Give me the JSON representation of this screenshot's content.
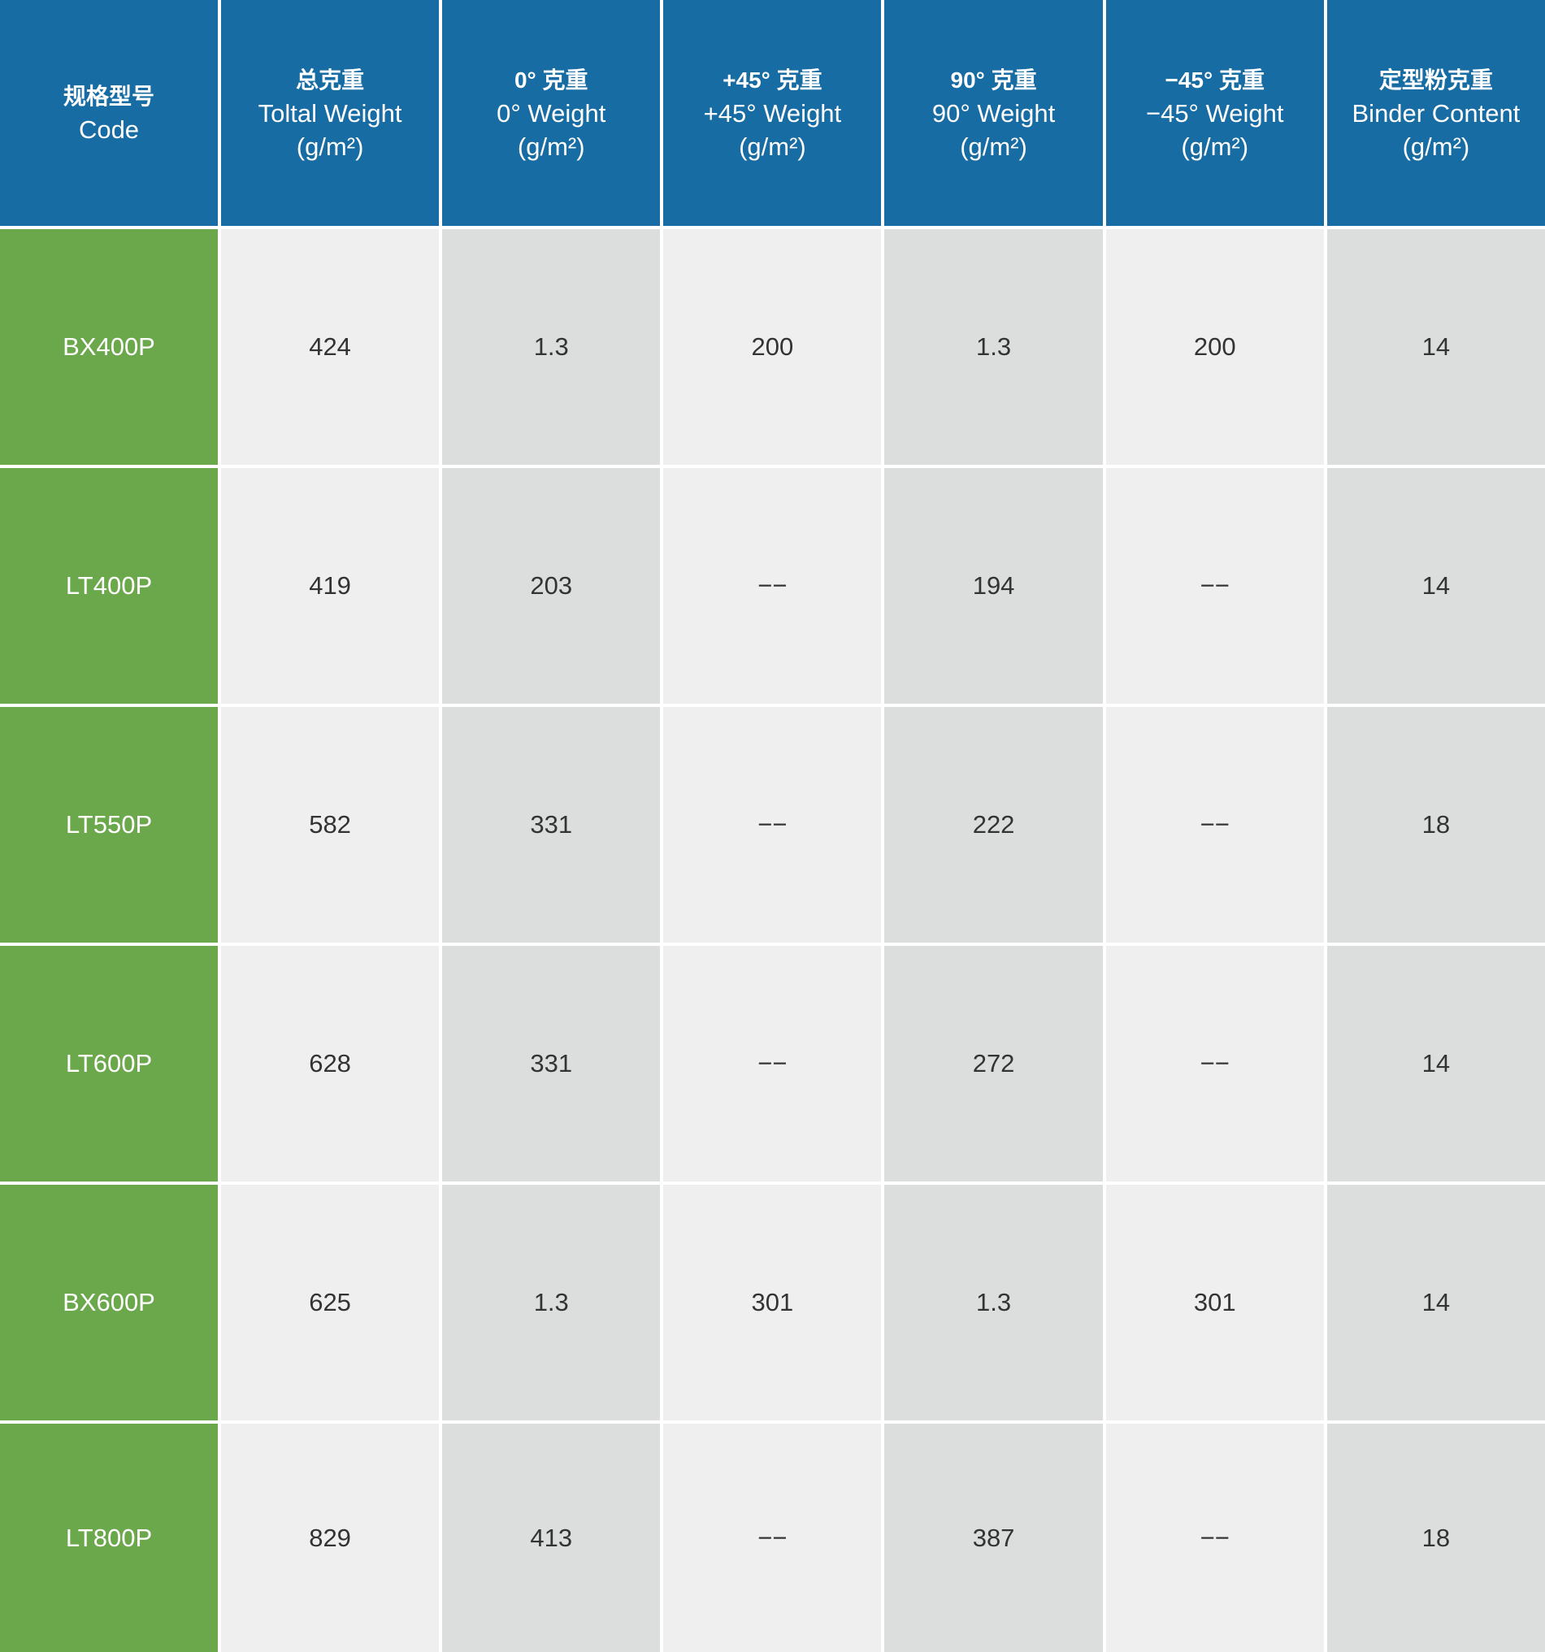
{
  "headers": [
    {
      "zh": "规格型号",
      "en": "Code",
      "unit": ""
    },
    {
      "zh": "总克重",
      "en": "Toltal Weight",
      "unit": "(g/m²)"
    },
    {
      "zh": "0° 克重",
      "en": "0°  Weight",
      "unit": "(g/m²)"
    },
    {
      "zh": "+45° 克重",
      "en": "+45° Weight",
      "unit": "(g/m²)"
    },
    {
      "zh": "90° 克重",
      "en": "90° Weight",
      "unit": "(g/m²)"
    },
    {
      "zh": "−45° 克重",
      "en": "−45°  Weight",
      "unit": "(g/m²)"
    },
    {
      "zh": "定型粉克重",
      "en": "Binder Content",
      "unit": "(g/m²)"
    }
  ],
  "rows": [
    [
      "BX400P",
      "424",
      "1.3",
      "200",
      "1.3",
      "200",
      "14"
    ],
    [
      "LT400P",
      "419",
      "203",
      "−−",
      "194",
      "−−",
      "14"
    ],
    [
      "LT550P",
      "582",
      "331",
      "−−",
      "222",
      "−−",
      "18"
    ],
    [
      "LT600P",
      "628",
      "331",
      "−−",
      "272",
      "−−",
      "14"
    ],
    [
      "BX600P",
      "625",
      "1.3",
      "301",
      "1.3",
      "301",
      "14"
    ],
    [
      "LT800P",
      "829",
      "413",
      "−−",
      "387",
      "−−",
      "18"
    ]
  ],
  "colors": {
    "header": "#176ca3",
    "code": "#6ba84b",
    "light": "#efefef",
    "dark": "#dcdedd"
  }
}
